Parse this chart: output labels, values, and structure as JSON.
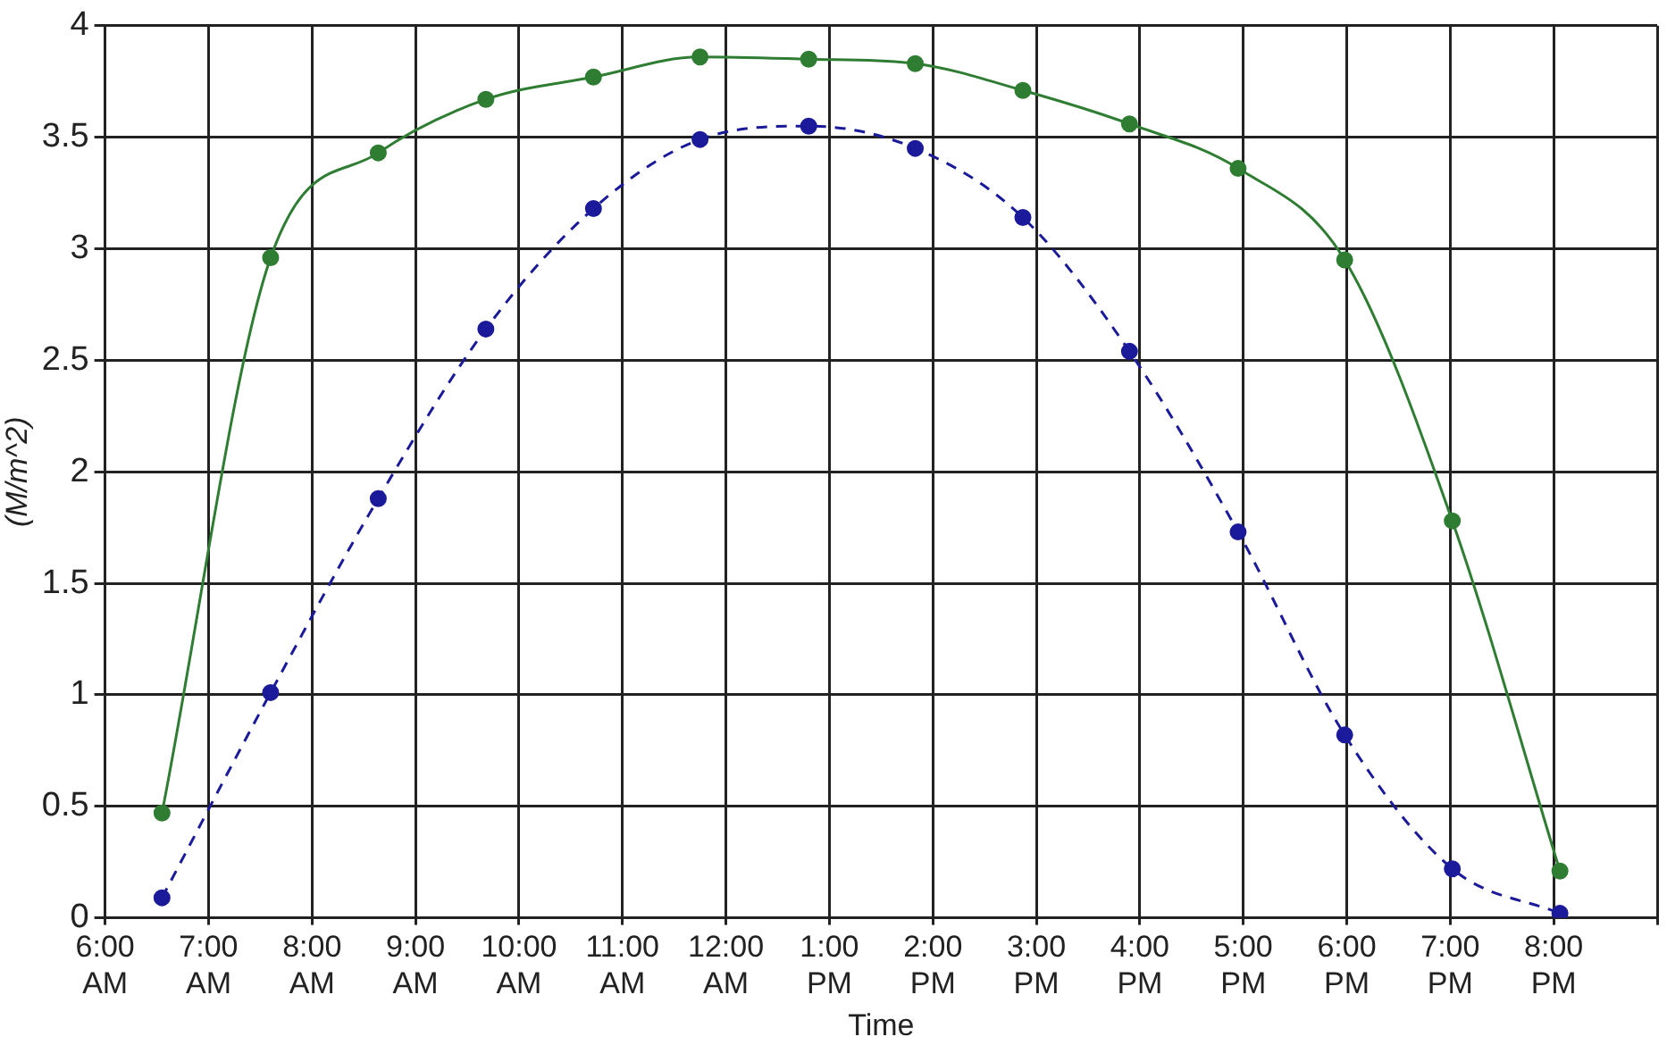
{
  "chart_data": {
    "type": "line",
    "xlabel": "Time",
    "ylabel": "(M/m^2)",
    "x": [
      6.55,
      7.6,
      8.64,
      9.68,
      10.72,
      11.75,
      12.8,
      13.83,
      14.87,
      15.9,
      16.95,
      17.98,
      19.02,
      20.06
    ],
    "series": [
      {
        "color": "#2e7d32",
        "line_style": "solid",
        "values": [
          0.47,
          2.96,
          3.43,
          3.67,
          3.77,
          3.86,
          3.85,
          3.83,
          3.71,
          3.56,
          3.36,
          2.95,
          1.78,
          0.21
        ]
      },
      {
        "color": "#1a1a9a",
        "line_style": "dashed",
        "values": [
          0.09,
          1.01,
          1.88,
          2.64,
          3.18,
          3.49,
          3.55,
          3.45,
          3.14,
          2.54,
          1.73,
          0.82,
          0.22,
          0.02
        ]
      }
    ],
    "xlim": [
      6,
      21
    ],
    "xticks": [
      {
        "value": 6,
        "label": "6:00 AM"
      },
      {
        "value": 7,
        "label": "7:00 AM"
      },
      {
        "value": 8,
        "label": "8:00 AM"
      },
      {
        "value": 9,
        "label": "9:00 AM"
      },
      {
        "value": 10,
        "label": "10:00 AM"
      },
      {
        "value": 11,
        "label": "11:00 AM"
      },
      {
        "value": 12,
        "label": "12:00 AM"
      },
      {
        "value": 13,
        "label": "1:00 PM"
      },
      {
        "value": 14,
        "label": "2:00 PM"
      },
      {
        "value": 15,
        "label": "3:00 PM"
      },
      {
        "value": 16,
        "label": "4:00 PM"
      },
      {
        "value": 17,
        "label": "5:00 PM"
      },
      {
        "value": 18,
        "label": "6:00 PM"
      },
      {
        "value": 19,
        "label": "7:00 PM"
      },
      {
        "value": 20,
        "label": "8:00 PM"
      },
      {
        "value": 21,
        "label": null
      }
    ],
    "ylim": [
      0,
      4
    ],
    "yticks": [
      0,
      0.5,
      1,
      1.5,
      2,
      2.5,
      3,
      3.5,
      4
    ],
    "grid": true,
    "legend": false,
    "marker": "circle"
  }
}
